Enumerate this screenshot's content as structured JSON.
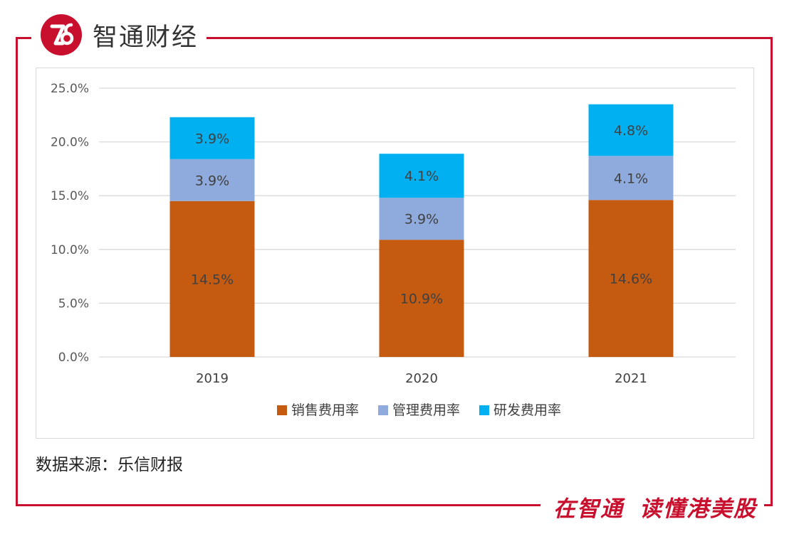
{
  "brand": {
    "name": "智通财经"
  },
  "footer": {
    "source": "数据来源：乐信财报",
    "slogan_left": "在智通",
    "slogan_right": "读懂港美股"
  },
  "colors": {
    "frame": "#c8102e",
    "sales": "#c55a11",
    "admin": "#8faadc",
    "rnd": "#00b0f0",
    "grid": "#d9d9d9",
    "label": "#404040"
  },
  "chart_data": {
    "type": "bar",
    "stacked": true,
    "categories": [
      "2019",
      "2020",
      "2021"
    ],
    "series": [
      {
        "name": "销售费用率",
        "values": [
          14.5,
          10.9,
          14.6
        ],
        "labels": [
          "14.5%",
          "10.9%",
          "14.6%"
        ],
        "color": "#c55a11"
      },
      {
        "name": "管理费用率",
        "values": [
          3.9,
          3.9,
          4.1
        ],
        "labels": [
          "3.9%",
          "3.9%",
          "4.1%"
        ],
        "color": "#8faadc"
      },
      {
        "name": "研发费用率",
        "values": [
          3.9,
          4.1,
          4.8
        ],
        "labels": [
          "3.9%",
          "4.1%",
          "4.8%"
        ],
        "color": "#00b0f0"
      }
    ],
    "ylim": [
      0,
      25
    ],
    "yticks": [
      "0.0%",
      "5.0%",
      "10.0%",
      "15.0%",
      "20.0%",
      "25.0%"
    ],
    "grid": true,
    "legend": "bottom",
    "title": "",
    "xlabel": "",
    "ylabel": ""
  }
}
